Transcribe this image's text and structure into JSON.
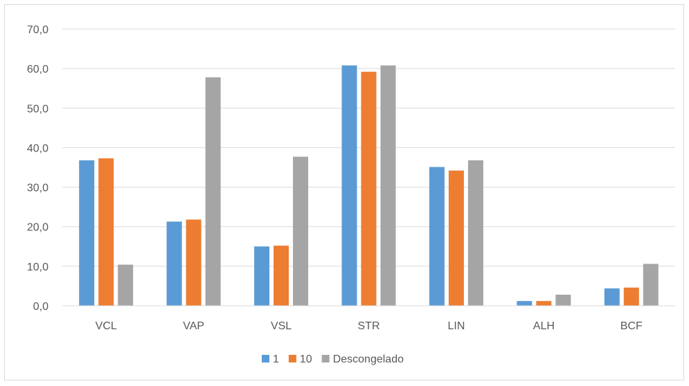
{
  "chart_data": {
    "type": "bar",
    "categories": [
      "VCL",
      "VAP",
      "VSL",
      "STR",
      "LIN",
      "ALH",
      "BCF"
    ],
    "series": [
      {
        "name": "1",
        "color": "#5b9bd5",
        "values": [
          36.8,
          21.3,
          15.0,
          60.8,
          35.1,
          1.2,
          4.4
        ]
      },
      {
        "name": "10",
        "color": "#ed7d31",
        "values": [
          37.3,
          21.8,
          15.2,
          59.2,
          34.2,
          1.2,
          4.6
        ]
      },
      {
        "name": "Descongelado",
        "color": "#a5a5a5",
        "values": [
          10.4,
          57.8,
          37.7,
          60.8,
          36.8,
          2.8,
          10.6
        ]
      }
    ],
    "yticks": [
      "0,0",
      "10,0",
      "20,0",
      "30,0",
      "40,0",
      "50,0",
      "60,0",
      "70,0"
    ],
    "ylim": [
      0,
      70
    ],
    "grid": true,
    "legend_position": "bottom",
    "title": "",
    "xlabel": "",
    "ylabel": ""
  }
}
